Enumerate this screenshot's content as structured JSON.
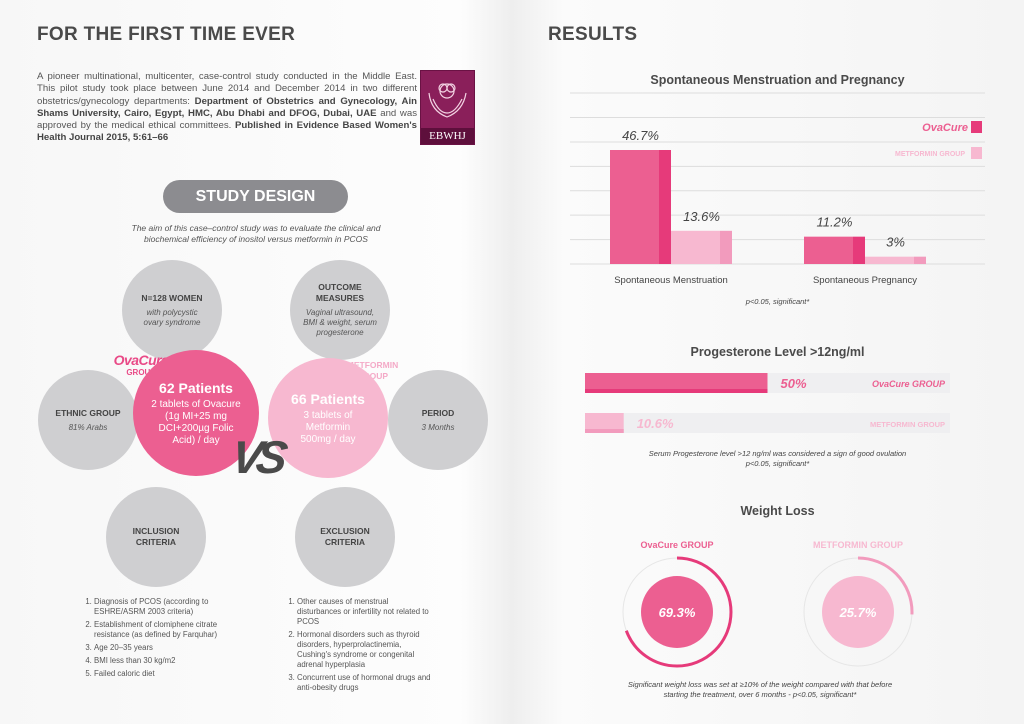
{
  "left": {
    "title": "FOR THE FIRST TIME EVER",
    "intro_plain_1": "A pioneer multinational, multicenter, case-control study conducted in the Middle East. This pilot study took place between June 2014 and December 2014 in two different obstetrics/gynecology departments: ",
    "intro_bold_1": "Department of Obstetrics and Gynecology, Ain Shams University, Cairo, Egypt, HMC, Abu Dhabi and DFOG, Dubai, UAE",
    "intro_plain_2": " and was approved by the medical ethical committees. ",
    "intro_bold_2": "Published in Evidence Based Women's Health Journal 2015, 5:61–66",
    "logo_text": "EBWHJ",
    "study_design_label": "STUDY DESIGN",
    "aim": "The aim of this case–control study was to evaluate the clinical and biochemical efficiency of inositol versus metformin in PCOS",
    "n_women": {
      "title": "N=128 WOMEN",
      "sub": "with polycystic ovary syndrome"
    },
    "outcome": {
      "title": "OUTCOME MEASURES",
      "sub": "Vaginal ultrasound, BMI & weight, serum progesterone"
    },
    "ethnic": {
      "title": "ETHNIC GROUP",
      "sub": "81% Arabs"
    },
    "period": {
      "title": "PERIOD",
      "sub": "3 Months"
    },
    "ovacure_brand": "OvaCure",
    "ovacure_group": "GROUP",
    "metformin_group_label": "METFORMIN GROUP",
    "ovacure_circle": {
      "title": "62 Patients",
      "sub": "2 tablets of Ovacure (1g MI+25 mg DCI+200µg Folic Acid) / day"
    },
    "metformin_circle": {
      "title": "66 Patients",
      "sub": "3 tablets of Metformin 500mg / day"
    },
    "vs": "VS",
    "inclusion": {
      "title": "INCLUSION CRITERIA",
      "items": [
        "Diagnosis of PCOS (according to ESHRE/ASRM 2003 criteria)",
        "Establishment of clomiphene citrate resistance (as defined by Farquhar)",
        "Age 20–35 years",
        "BMI less than 30 kg/m2",
        "Failed caloric diet"
      ]
    },
    "exclusion": {
      "title": "EXCLUSION CRITERIA",
      "items": [
        "Other causes of menstrual disturbances or infertility not related to PCOS",
        "Hormonal disorders such as thyroid disorders, hyperprolactinemia, Cushing's syndrome or congenital adrenal hyperplasia",
        "Concurrent use of hormonal drugs and anti-obesity drugs"
      ]
    }
  },
  "right": {
    "title": "RESULTS"
  },
  "colors": {
    "ovacure": "#ec5f91",
    "ovacure_dark": "#e63a7a",
    "metformin": "#f7b8d0",
    "metformin_dark": "#f29bbd",
    "grey_circle": "#cfcfd1"
  },
  "chart_data": [
    {
      "type": "bar",
      "title": "Spontaneous Menstruation and Pregnancy",
      "categories": [
        "Spontaneous Menstruation",
        "Spontaneous Pregnancy"
      ],
      "series": [
        {
          "name": "OvaCure GROUP",
          "values": [
            46.7,
            11.2
          ],
          "labels": [
            "46.7%",
            "11.2%"
          ]
        },
        {
          "name": "METFORMIN GROUP",
          "values": [
            13.6,
            3
          ],
          "labels": [
            "13.6%",
            "3%"
          ]
        }
      ],
      "ylim": [
        0,
        60
      ],
      "grid": true,
      "legend": "top-right",
      "note": "p<0.05, significant*"
    },
    {
      "type": "bar",
      "orientation": "horizontal",
      "title": "Progesterone Level >12ng/ml",
      "series": [
        {
          "name": "OvaCure GROUP",
          "value": 50,
          "label": "50%"
        },
        {
          "name": "METFORMIN GROUP",
          "value": 10.6,
          "label": "10.6%"
        }
      ],
      "xlim": [
        0,
        100
      ],
      "note_1": "Serum Progesterone level >12 ng/ml was considered a sign of good ovulation",
      "note_2": "p<0.05, significant*"
    },
    {
      "type": "pie",
      "style": "radial-progress",
      "title": "Weight Loss",
      "series": [
        {
          "name": "OvaCure GROUP",
          "value": 69.3,
          "label": "69.3%"
        },
        {
          "name": "METFORMIN GROUP",
          "value": 25.7,
          "label": "25.7%"
        }
      ],
      "note": "Significant weight loss was set at ≥10% of the weight compared with that before starting the treatment, over 6 months - p<0.05, significant*"
    }
  ]
}
